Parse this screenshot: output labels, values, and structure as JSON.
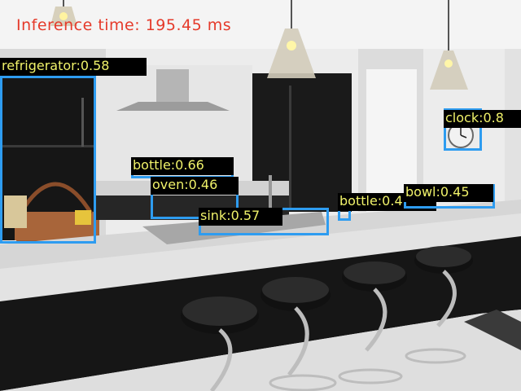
{
  "overlay": {
    "inference_text": "Inference time: 195.45 ms",
    "text_color": "#e53a2a",
    "box_color": "#2e9cf0",
    "label_bg": "#000000",
    "label_color": "#f0f26a"
  },
  "detections": [
    {
      "label": "refrigerator:0.58"
    },
    {
      "label": "bottle:0.66"
    },
    {
      "label": "oven:0.46"
    },
    {
      "label": "sink:0.57"
    },
    {
      "label": "bottle:0.4"
    },
    {
      "label": "bowl:0.45"
    },
    {
      "label": "clock:0.8"
    }
  ]
}
